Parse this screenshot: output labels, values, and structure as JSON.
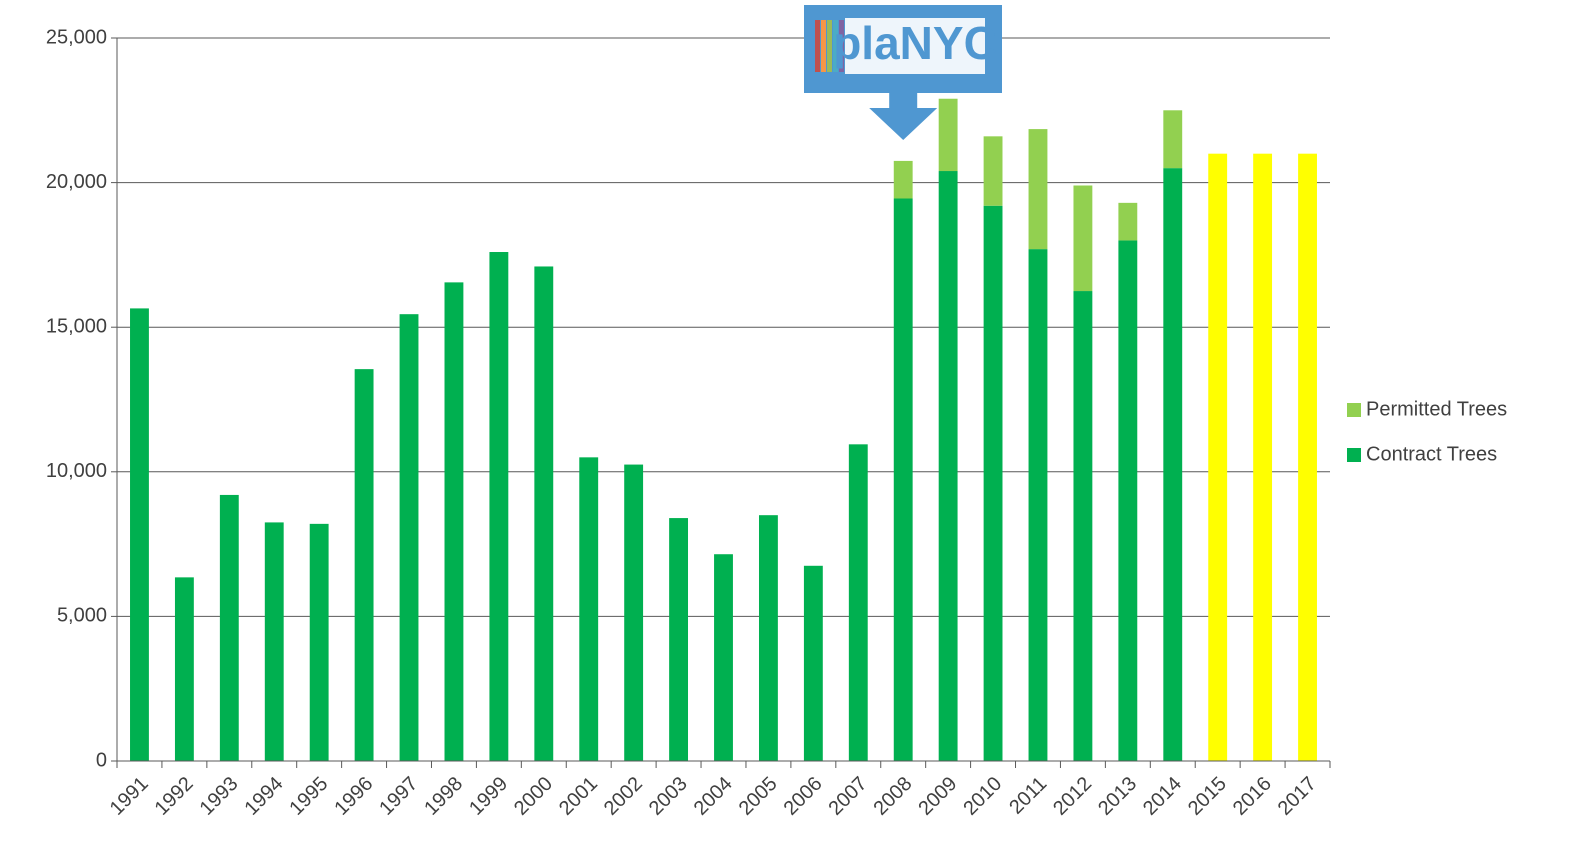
{
  "chart_data": {
    "type": "stacked_bar",
    "categories": [
      "1991",
      "1992",
      "1993",
      "1994",
      "1995",
      "1996",
      "1997",
      "1998",
      "1999",
      "2000",
      "2001",
      "2002",
      "2003",
      "2004",
      "2005",
      "2006",
      "2007",
      "2008",
      "2009",
      "2010",
      "2011",
      "2012",
      "2013",
      "2014",
      "2015",
      "2016",
      "2017"
    ],
    "series": [
      {
        "name": "Contract Trees",
        "color": "#00b050",
        "colors": [
          "#00b050",
          "#00b050",
          "#00b050",
          "#00b050",
          "#00b050",
          "#00b050",
          "#00b050",
          "#00b050",
          "#00b050",
          "#00b050",
          "#00b050",
          "#00b050",
          "#00b050",
          "#00b050",
          "#00b050",
          "#00b050",
          "#00b050",
          "#00b050",
          "#00b050",
          "#00b050",
          "#00b050",
          "#00b050",
          "#00b050",
          "#00b050",
          "#ffff00",
          "#ffff00",
          "#ffff00"
        ],
        "values": [
          15650,
          6350,
          9200,
          8250,
          8200,
          13550,
          15450,
          16550,
          17600,
          17100,
          10500,
          10250,
          8400,
          7150,
          8500,
          6750,
          10950,
          19450,
          20400,
          19200,
          17700,
          16250,
          18000,
          20500,
          21000,
          21000,
          21000
        ]
      },
      {
        "name": "Permitted Trees",
        "color": "#92d050",
        "values": [
          null,
          null,
          null,
          null,
          null,
          null,
          null,
          null,
          null,
          null,
          null,
          null,
          null,
          null,
          null,
          null,
          null,
          1300,
          2500,
          2400,
          4150,
          3650,
          1300,
          2000,
          null,
          null,
          null
        ]
      }
    ],
    "ylim": [
      0,
      25000
    ],
    "yticks": [
      0,
      {
        "value": 5000,
        "label": "5,000"
      },
      {
        "value": 10000,
        "label": "10,000"
      },
      {
        "value": 15000,
        "label": "15,000"
      },
      {
        "value": 20000,
        "label": "20,000"
      },
      {
        "value": 25000,
        "label": "25,000"
      }
    ],
    "grid": true,
    "legend": "right",
    "annotation": {
      "text": "plaNYC",
      "category": 17
    }
  }
}
